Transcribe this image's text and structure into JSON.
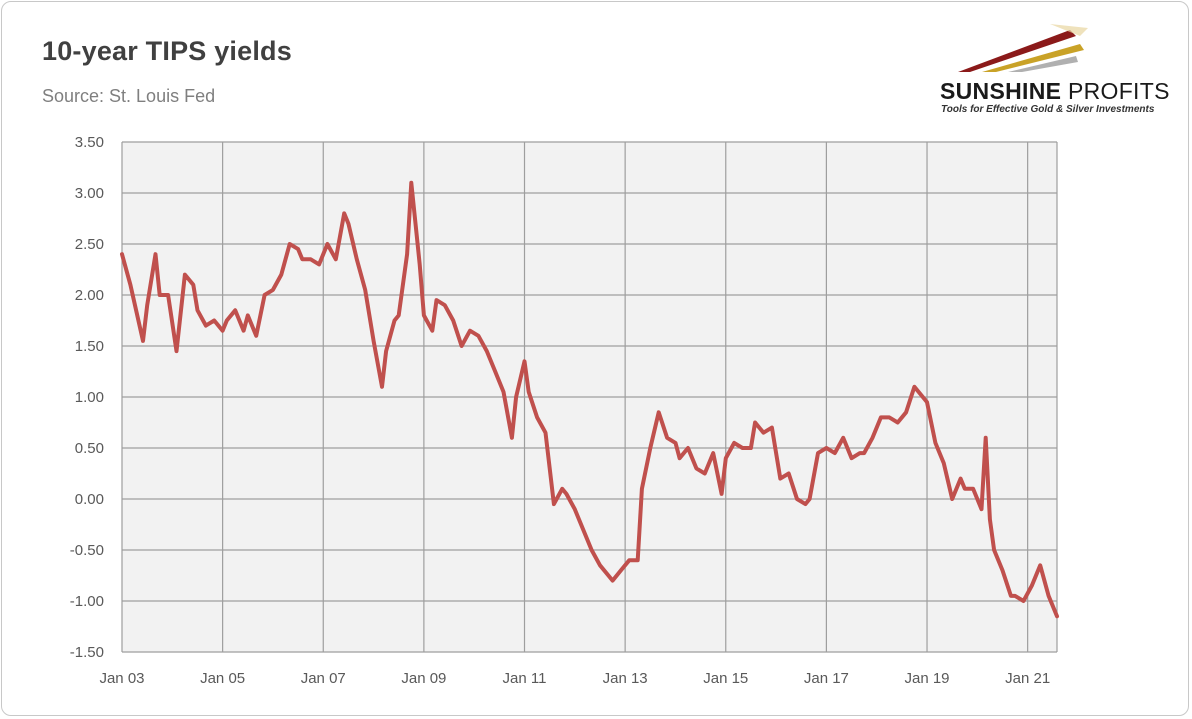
{
  "header": {
    "title": "10-year TIPS yields",
    "source": "Source: St. Louis Fed"
  },
  "logo": {
    "brand_bold": "SUNSHINE",
    "brand_light": "PROFITS",
    "tagline": "Tools for Effective Gold & Silver Investments"
  },
  "colors": {
    "line": "#c0504d",
    "plot_background": "#f2f2f2",
    "gridline": "#9e9e9e"
  },
  "chart_data": {
    "type": "line",
    "title": "10-year TIPS yields",
    "xlabel": "",
    "ylabel": "",
    "ylim": [
      -1.5,
      3.5
    ],
    "y_ticks": [
      "3.50",
      "3.00",
      "2.50",
      "2.00",
      "1.50",
      "1.00",
      "0.50",
      "0.00",
      "-0.50",
      "-1.00",
      "-1.50"
    ],
    "x_ticks": [
      "Jan 03",
      "Jan 05",
      "Jan 07",
      "Jan 09",
      "Jan 11",
      "Jan 13",
      "Jan 15",
      "Jan 17",
      "Jan 19",
      "Jan 21"
    ],
    "xlim": [
      "2003-01",
      "2021-08"
    ],
    "grid": true,
    "series": [
      {
        "x": [
          "2003-01",
          "2003-03",
          "2003-06",
          "2003-07",
          "2003-09",
          "2003-10",
          "2003-12",
          "2004-02",
          "2004-04",
          "2004-06",
          "2004-07",
          "2004-09",
          "2004-11",
          "2005-01",
          "2005-02",
          "2005-04",
          "2005-06",
          "2005-07",
          "2005-09",
          "2005-11",
          "2006-01",
          "2006-03",
          "2006-05",
          "2006-07",
          "2006-08",
          "2006-10",
          "2006-12",
          "2007-02",
          "2007-04",
          "2007-06",
          "2007-07",
          "2007-09",
          "2007-11",
          "2008-01",
          "2008-03",
          "2008-04",
          "2008-06",
          "2008-07",
          "2008-09",
          "2008-10",
          "2008-11",
          "2008-12",
          "2009-01",
          "2009-03",
          "2009-04",
          "2009-06",
          "2009-08",
          "2009-10",
          "2009-12",
          "2010-02",
          "2010-04",
          "2010-06",
          "2010-08",
          "2010-10",
          "2010-11",
          "2011-01",
          "2011-02",
          "2011-04",
          "2011-06",
          "2011-08",
          "2011-10",
          "2011-11",
          "2012-01",
          "2012-03",
          "2012-05",
          "2012-07",
          "2012-09",
          "2012-10",
          "2012-12",
          "2013-02",
          "2013-04",
          "2013-05",
          "2013-07",
          "2013-09",
          "2013-11",
          "2014-01",
          "2014-02",
          "2014-04",
          "2014-06",
          "2014-08",
          "2014-10",
          "2014-12",
          "2015-01",
          "2015-03",
          "2015-05",
          "2015-07",
          "2015-08",
          "2015-10",
          "2015-12",
          "2016-02",
          "2016-04",
          "2016-06",
          "2016-08",
          "2016-09",
          "2016-11",
          "2017-01",
          "2017-03",
          "2017-05",
          "2017-07",
          "2017-09",
          "2017-10",
          "2017-12",
          "2018-02",
          "2018-04",
          "2018-06",
          "2018-08",
          "2018-10",
          "2018-11",
          "2019-01",
          "2019-03",
          "2019-05",
          "2019-07",
          "2019-09",
          "2019-10",
          "2019-12",
          "2020-02",
          "2020-03",
          "2020-04",
          "2020-05",
          "2020-07",
          "2020-09",
          "2020-10",
          "2020-12",
          "2021-02",
          "2021-04",
          "2021-06",
          "2021-08"
        ],
        "y": [
          2.4,
          2.1,
          1.55,
          1.9,
          2.4,
          2.0,
          2.0,
          1.45,
          2.2,
          2.1,
          1.85,
          1.7,
          1.75,
          1.65,
          1.75,
          1.85,
          1.65,
          1.8,
          1.6,
          2.0,
          2.05,
          2.2,
          2.5,
          2.45,
          2.35,
          2.35,
          2.3,
          2.5,
          2.35,
          2.8,
          2.7,
          2.35,
          2.05,
          1.55,
          1.1,
          1.45,
          1.75,
          1.8,
          2.4,
          3.1,
          2.7,
          2.3,
          1.8,
          1.65,
          1.95,
          1.9,
          1.75,
          1.5,
          1.65,
          1.6,
          1.45,
          1.25,
          1.05,
          0.6,
          1.0,
          1.35,
          1.05,
          0.8,
          0.65,
          -0.05,
          0.1,
          0.05,
          -0.1,
          -0.3,
          -0.5,
          -0.65,
          -0.75,
          -0.8,
          -0.7,
          -0.6,
          -0.6,
          0.1,
          0.5,
          0.85,
          0.6,
          0.55,
          0.4,
          0.5,
          0.3,
          0.25,
          0.45,
          0.05,
          0.4,
          0.55,
          0.5,
          0.5,
          0.75,
          0.65,
          0.7,
          0.2,
          0.25,
          0.0,
          -0.05,
          0.0,
          0.45,
          0.5,
          0.45,
          0.6,
          0.4,
          0.45,
          0.45,
          0.6,
          0.8,
          0.8,
          0.75,
          0.85,
          1.1,
          1.05,
          0.95,
          0.55,
          0.35,
          0.0,
          0.2,
          0.1,
          0.1,
          -0.1,
          0.6,
          -0.2,
          -0.5,
          -0.7,
          -0.95,
          -0.95,
          -1.0,
          -0.85,
          -0.65,
          -0.95,
          -1.15
        ]
      }
    ]
  }
}
